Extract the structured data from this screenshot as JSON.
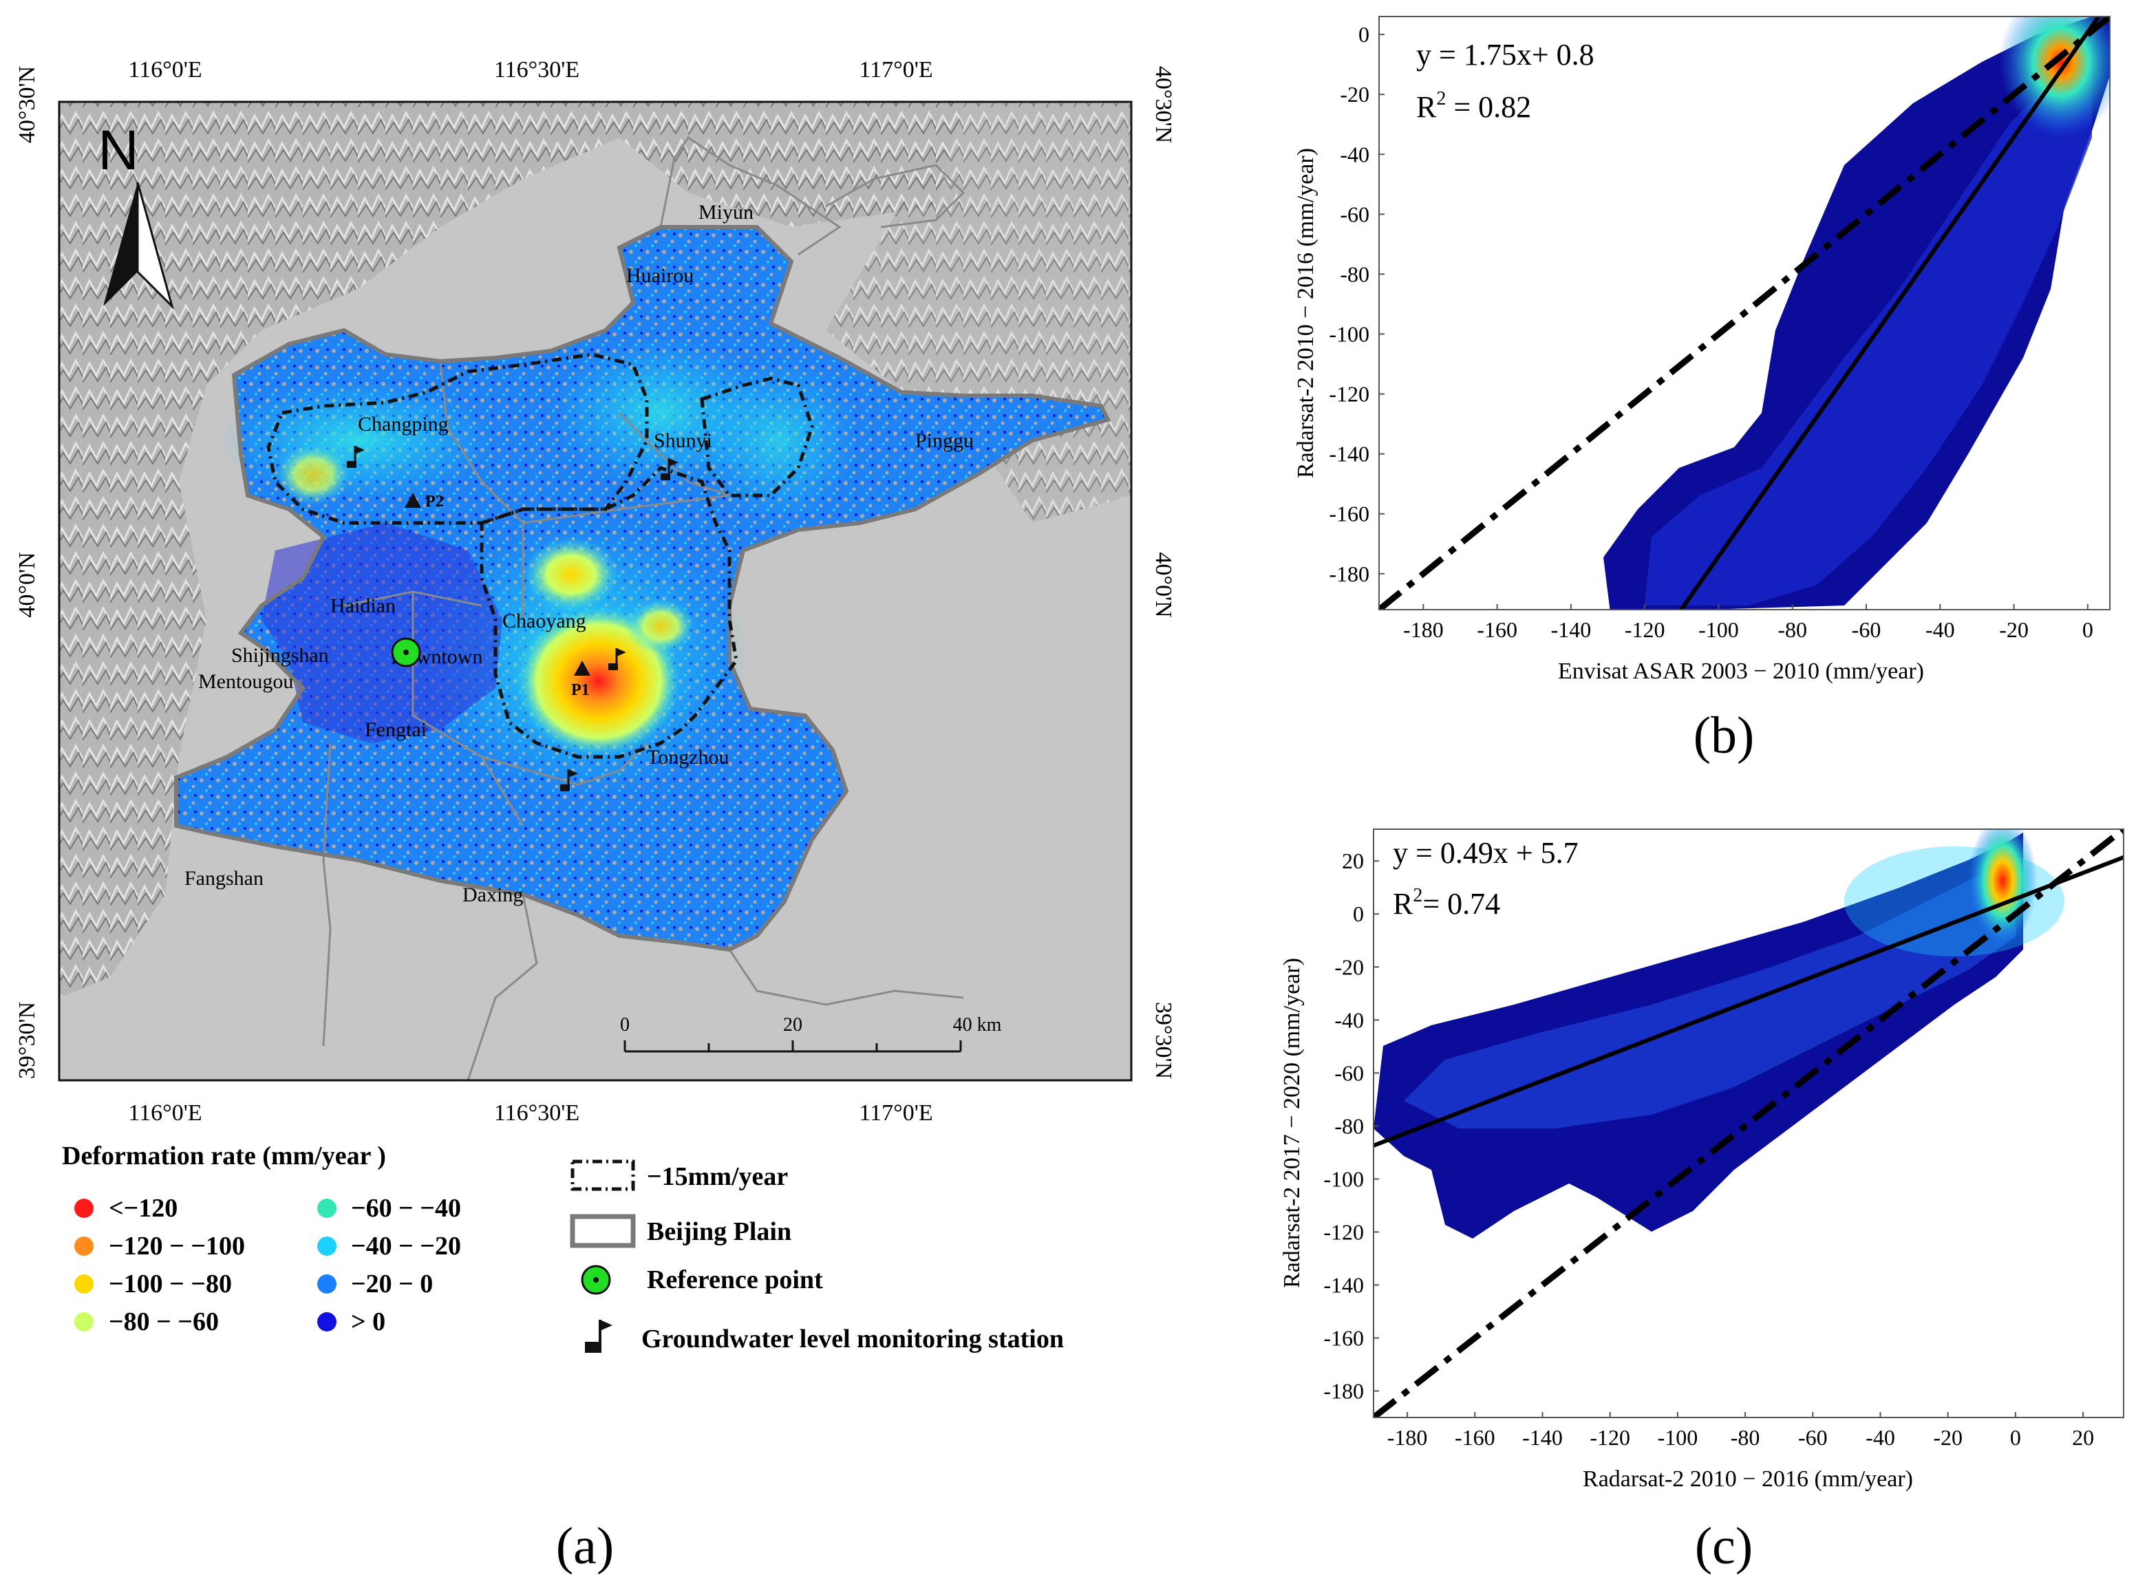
{
  "panel_labels": {
    "a": "(a)",
    "b": "(b)",
    "c": "(c)"
  },
  "map": {
    "north_label": "N",
    "lon_ticks": [
      "116°0'E",
      "116°30'E",
      "117°0'E"
    ],
    "lat_ticks": [
      "40°30'N",
      "40°0'N",
      "39°30'N"
    ],
    "districts": [
      "Miyun",
      "Huairou",
      "Changping",
      "Shunyi",
      "Pinggu",
      "Haidian",
      "Chaoyang",
      "Shijingshan",
      "Downtown",
      "Mentougou",
      "Fengtai",
      "Tongzhou",
      "Fangshan",
      "Daxing"
    ],
    "point_labels": {
      "p1": "P1",
      "p2": "P2"
    },
    "scale_bar": {
      "labels": [
        "0",
        "20",
        "40 km"
      ],
      "values_km": [
        0,
        20,
        40
      ]
    }
  },
  "legend": {
    "title": "Deformation rate (mm/year  )",
    "classes": [
      {
        "label": "<−120",
        "color": "#ff1a1a"
      },
      {
        "label": "−120 − −100",
        "color": "#ff8c1a"
      },
      {
        "label": "−100 − −80",
        "color": "#ffd700"
      },
      {
        "label": "−80  − −60",
        "color": "#ccff66"
      },
      {
        "label": "−60 − −40",
        "color": "#33e6b3"
      },
      {
        "label": "−40 − −20",
        "color": "#1ad1ff"
      },
      {
        "label": "−20 − 0",
        "color": "#1a80ff"
      },
      {
        "label": "> 0",
        "color": "#1010e0"
      }
    ],
    "symbols": [
      {
        "label": "−15mm/year",
        "icon": "dashed-boundary-icon"
      },
      {
        "label": "Beijing Plain",
        "icon": "plain-boundary-icon"
      },
      {
        "label": "Reference point",
        "icon": "reference-point-icon"
      },
      {
        "label": "Groundwater level monitoring station",
        "icon": "flag-icon"
      }
    ]
  },
  "chart_data": [
    {
      "panel": "b",
      "type": "scatter",
      "xlabel": "Envisat ASAR 2003 − 2010 (mm/year)",
      "ylabel": "Radarsat-2 2010 − 2016 (mm/year)",
      "xlim": [
        -192,
        6
      ],
      "ylim": [
        -192,
        6
      ],
      "xticks": [
        -180,
        -160,
        -140,
        -120,
        -100,
        -80,
        -60,
        -40,
        -20,
        0
      ],
      "yticks": [
        -180,
        -160,
        -140,
        -120,
        -100,
        -80,
        -60,
        -40,
        -20,
        0
      ],
      "equation": "y = 1.75x+ 0.8",
      "r2_prefix": "R",
      "r2_sup": "2",
      "r2_value": " = 0.82",
      "fit_line": {
        "slope": 1.75,
        "intercept": 0.8
      },
      "reference_line": {
        "slope": 1,
        "intercept": 0
      }
    },
    {
      "panel": "c",
      "type": "scatter",
      "xlabel": "Radarsat-2 2010 − 2016 (mm/year)",
      "ylabel": "Radarsat-2 2017 − 2020 (mm/year)",
      "xlim": [
        -190,
        32
      ],
      "ylim": [
        -190,
        32
      ],
      "xticks": [
        -180,
        -160,
        -140,
        -120,
        -100,
        -80,
        -60,
        -40,
        -20,
        0,
        20
      ],
      "yticks": [
        -180,
        -160,
        -140,
        -120,
        -100,
        -80,
        -60,
        -40,
        -20,
        0,
        20
      ],
      "equation": "y = 0.49x + 5.7",
      "r2_prefix": "R",
      "r2_sup": "2",
      "r2_value": "= 0.74",
      "fit_line": {
        "slope": 0.49,
        "intercept": 5.7
      },
      "reference_line": {
        "slope": 1,
        "intercept": 0
      }
    }
  ]
}
